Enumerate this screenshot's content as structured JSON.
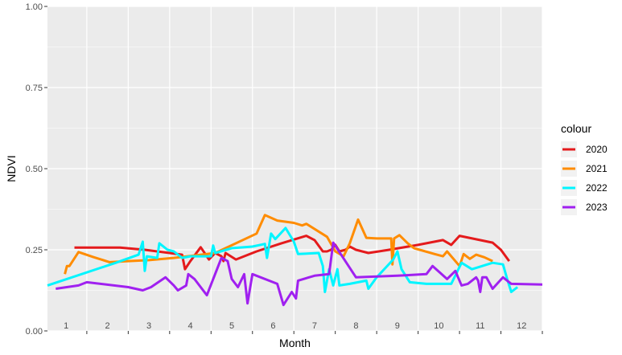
{
  "chart_data": {
    "type": "line",
    "xlabel": "Month",
    "ylabel": "NDVI",
    "ylim": [
      0,
      1
    ],
    "xlim": [
      0.55,
      12.5
    ],
    "y_ticks": [
      "0.00",
      "0.25",
      "0.50",
      "0.75",
      "1.00"
    ],
    "y_tick_values": [
      0,
      0.25,
      0.5,
      0.75,
      1.0
    ],
    "x_ticks": [
      "1",
      "2",
      "3",
      "4",
      "5",
      "6",
      "7",
      "8",
      "9",
      "10",
      "11",
      "12"
    ],
    "grid": true,
    "background": "#ebebeb",
    "legend": {
      "title": "colour",
      "placement": "right"
    },
    "series": [
      {
        "name": "2020",
        "color": "#e41a1c",
        "points": [
          [
            1.2,
            0.257
          ],
          [
            1.8,
            0.257
          ],
          [
            2.3,
            0.257
          ],
          [
            2.9,
            0.25
          ],
          [
            3.5,
            0.24
          ],
          [
            3.8,
            0.235
          ],
          [
            3.87,
            0.19
          ],
          [
            4.0,
            0.215
          ],
          [
            4.25,
            0.258
          ],
          [
            4.45,
            0.22
          ],
          [
            4.6,
            0.24
          ],
          [
            4.75,
            0.23
          ],
          [
            4.8,
            0.215
          ],
          [
            4.85,
            0.24
          ],
          [
            5.1,
            0.22
          ],
          [
            5.6,
            0.245
          ],
          [
            6.2,
            0.27
          ],
          [
            6.8,
            0.293
          ],
          [
            7.0,
            0.28
          ],
          [
            7.2,
            0.245
          ],
          [
            7.3,
            0.245
          ],
          [
            7.4,
            0.25
          ],
          [
            7.5,
            0.265
          ],
          [
            7.6,
            0.245
          ],
          [
            7.75,
            0.25
          ],
          [
            7.85,
            0.26
          ],
          [
            8.0,
            0.25
          ],
          [
            8.3,
            0.24
          ],
          [
            8.8,
            0.25
          ],
          [
            9.5,
            0.265
          ],
          [
            10.1,
            0.28
          ],
          [
            10.3,
            0.265
          ],
          [
            10.5,
            0.293
          ],
          [
            11.3,
            0.272
          ],
          [
            11.5,
            0.25
          ],
          [
            11.7,
            0.215
          ]
        ]
      },
      {
        "name": "2021",
        "color": "#ff8c00",
        "points": [
          [
            0.97,
            0.175
          ],
          [
            1.02,
            0.2
          ],
          [
            1.08,
            0.2
          ],
          [
            1.3,
            0.243
          ],
          [
            1.65,
            0.228
          ],
          [
            2.05,
            0.212
          ],
          [
            2.5,
            0.215
          ],
          [
            3.0,
            0.218
          ],
          [
            3.6,
            0.225
          ],
          [
            4.6,
            0.24
          ],
          [
            5.6,
            0.3
          ],
          [
            5.8,
            0.357
          ],
          [
            6.1,
            0.34
          ],
          [
            6.5,
            0.333
          ],
          [
            6.7,
            0.325
          ],
          [
            6.8,
            0.33
          ],
          [
            7.3,
            0.29
          ],
          [
            7.5,
            0.245
          ],
          [
            7.7,
            0.23
          ],
          [
            7.85,
            0.27
          ],
          [
            8.05,
            0.343
          ],
          [
            8.25,
            0.287
          ],
          [
            8.5,
            0.285
          ],
          [
            8.85,
            0.285
          ],
          [
            8.88,
            0.205
          ],
          [
            8.92,
            0.285
          ],
          [
            9.05,
            0.295
          ],
          [
            9.25,
            0.27
          ],
          [
            9.4,
            0.255
          ],
          [
            9.9,
            0.237
          ],
          [
            10.1,
            0.23
          ],
          [
            10.2,
            0.245
          ],
          [
            10.5,
            0.2
          ],
          [
            10.6,
            0.237
          ],
          [
            10.75,
            0.222
          ],
          [
            10.9,
            0.235
          ],
          [
            11.1,
            0.227
          ],
          [
            11.3,
            0.215
          ]
        ]
      },
      {
        "name": "2022",
        "color": "#00f5ff",
        "points": [
          [
            0.55,
            0.14
          ],
          [
            2.2,
            0.21
          ],
          [
            2.75,
            0.235
          ],
          [
            2.85,
            0.275
          ],
          [
            2.9,
            0.185
          ],
          [
            2.95,
            0.23
          ],
          [
            3.2,
            0.225
          ],
          [
            3.25,
            0.27
          ],
          [
            3.45,
            0.25
          ],
          [
            3.6,
            0.245
          ],
          [
            3.8,
            0.225
          ],
          [
            4.0,
            0.23
          ],
          [
            4.5,
            0.23
          ],
          [
            4.55,
            0.263
          ],
          [
            4.6,
            0.24
          ],
          [
            5.0,
            0.255
          ],
          [
            5.5,
            0.26
          ],
          [
            5.8,
            0.268
          ],
          [
            5.85,
            0.225
          ],
          [
            5.95,
            0.3
          ],
          [
            6.05,
            0.283
          ],
          [
            6.3,
            0.317
          ],
          [
            6.5,
            0.275
          ],
          [
            6.6,
            0.237
          ],
          [
            7.1,
            0.24
          ],
          [
            7.2,
            0.2
          ],
          [
            7.25,
            0.12
          ],
          [
            7.35,
            0.19
          ],
          [
            7.45,
            0.14
          ],
          [
            7.55,
            0.19
          ],
          [
            7.6,
            0.14
          ],
          [
            7.85,
            0.145
          ],
          [
            8.25,
            0.155
          ],
          [
            8.3,
            0.13
          ],
          [
            8.5,
            0.165
          ],
          [
            8.9,
            0.22
          ],
          [
            9.0,
            0.245
          ],
          [
            9.1,
            0.19
          ],
          [
            9.3,
            0.15
          ],
          [
            9.7,
            0.145
          ],
          [
            10.3,
            0.145
          ],
          [
            10.55,
            0.21
          ],
          [
            10.8,
            0.19
          ],
          [
            11.3,
            0.21
          ],
          [
            11.55,
            0.205
          ],
          [
            11.65,
            0.16
          ],
          [
            11.75,
            0.12
          ],
          [
            11.9,
            0.135
          ]
        ]
      },
      {
        "name": "2023",
        "color": "#a020f0",
        "points": [
          [
            0.75,
            0.13
          ],
          [
            1.3,
            0.14
          ],
          [
            1.5,
            0.15
          ],
          [
            2.5,
            0.135
          ],
          [
            2.85,
            0.125
          ],
          [
            3.05,
            0.135
          ],
          [
            3.4,
            0.165
          ],
          [
            3.6,
            0.14
          ],
          [
            3.7,
            0.125
          ],
          [
            3.9,
            0.14
          ],
          [
            3.95,
            0.175
          ],
          [
            4.1,
            0.16
          ],
          [
            4.4,
            0.11
          ],
          [
            4.75,
            0.225
          ],
          [
            4.9,
            0.215
          ],
          [
            5.0,
            0.16
          ],
          [
            5.15,
            0.135
          ],
          [
            5.3,
            0.175
          ],
          [
            5.38,
            0.085
          ],
          [
            5.5,
            0.175
          ],
          [
            6.1,
            0.145
          ],
          [
            6.25,
            0.08
          ],
          [
            6.45,
            0.12
          ],
          [
            6.55,
            0.1
          ],
          [
            6.6,
            0.155
          ],
          [
            7.0,
            0.17
          ],
          [
            7.35,
            0.175
          ],
          [
            7.45,
            0.272
          ],
          [
            8.0,
            0.165
          ],
          [
            9.0,
            0.17
          ],
          [
            9.7,
            0.175
          ],
          [
            9.85,
            0.2
          ],
          [
            10.2,
            0.16
          ],
          [
            10.4,
            0.185
          ],
          [
            10.55,
            0.14
          ],
          [
            10.7,
            0.145
          ],
          [
            10.9,
            0.165
          ],
          [
            10.95,
            0.155
          ],
          [
            11.0,
            0.12
          ],
          [
            11.05,
            0.165
          ],
          [
            11.15,
            0.165
          ],
          [
            11.3,
            0.13
          ],
          [
            11.55,
            0.165
          ],
          [
            11.75,
            0.145
          ],
          [
            12.5,
            0.143
          ]
        ]
      }
    ]
  }
}
